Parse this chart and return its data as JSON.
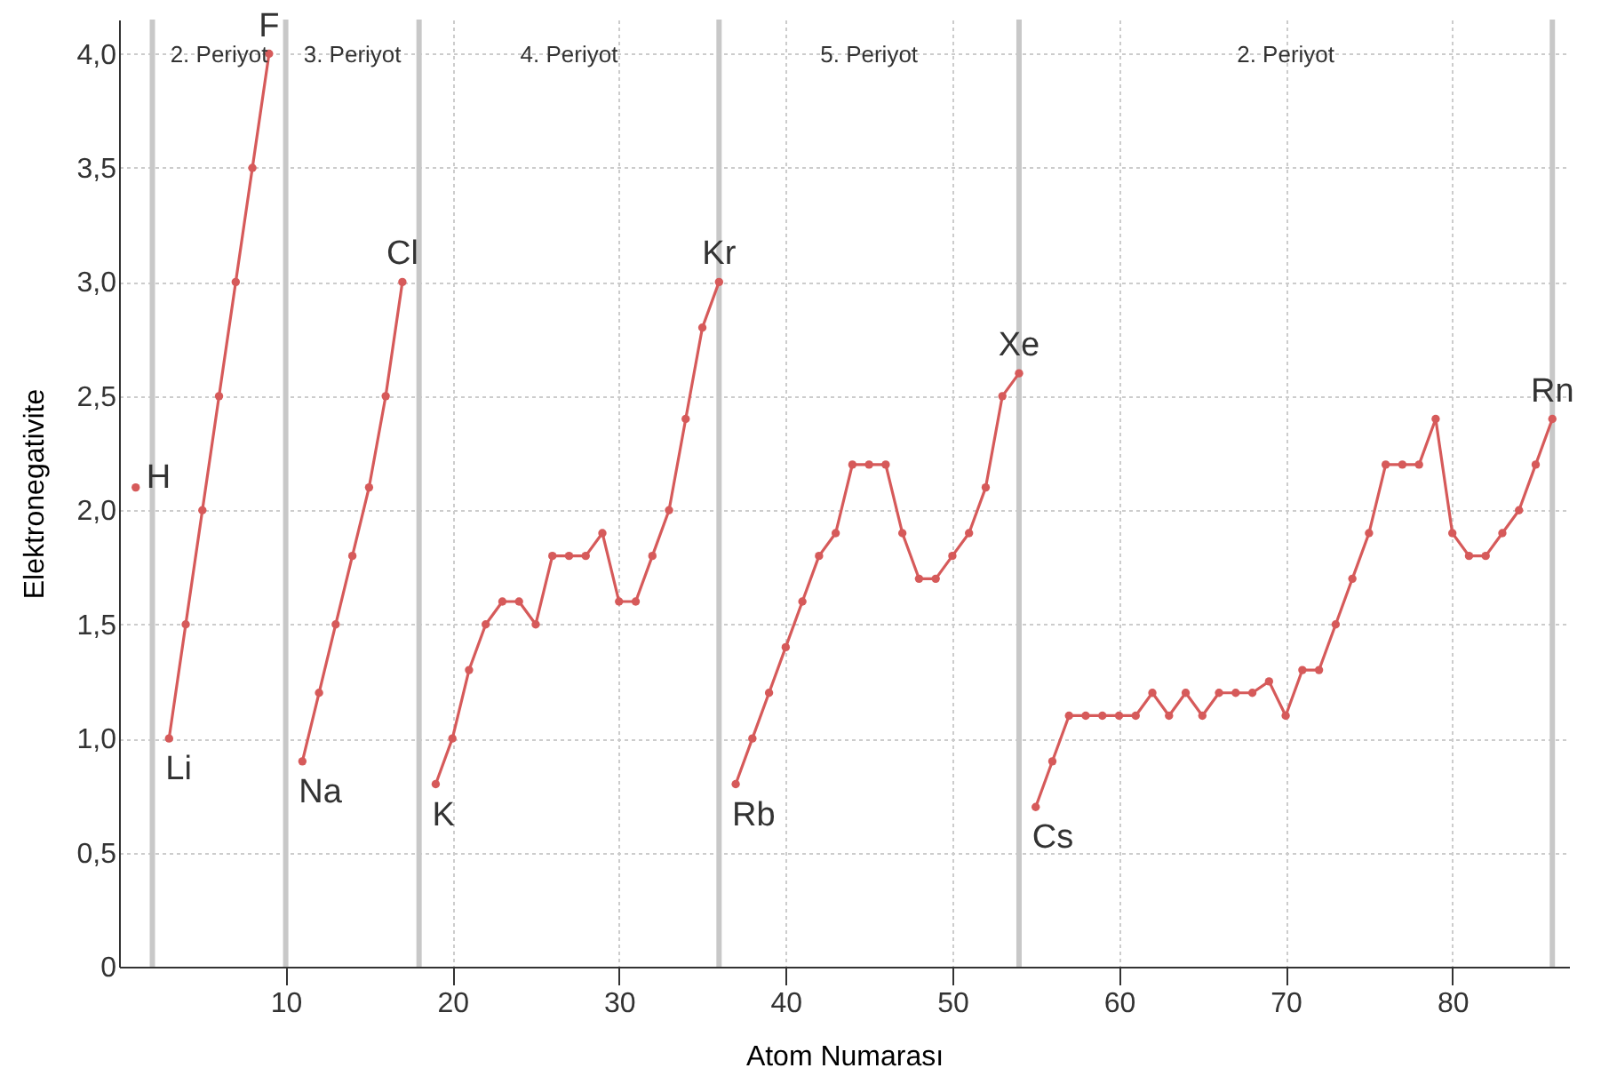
{
  "chart_data": {
    "type": "line",
    "xlabel": "Atom Numarası",
    "ylabel": "Elektronegativite",
    "xlim": [
      0,
      87
    ],
    "xticks": [
      10,
      20,
      30,
      40,
      50,
      60,
      70,
      80
    ],
    "ylim": [
      0,
      4.15
    ],
    "yticks": [
      {
        "value": 0,
        "label": "0"
      },
      {
        "value": 0.5,
        "label": "0,5"
      },
      {
        "value": 1,
        "label": "1,0"
      },
      {
        "value": 1.5,
        "label": "1,5"
      },
      {
        "value": 2,
        "label": "2,0"
      },
      {
        "value": 2.5,
        "label": "2,5"
      },
      {
        "value": 3,
        "label": "3,0"
      },
      {
        "value": 3.5,
        "label": "3,5"
      },
      {
        "value": 4,
        "label": "4,0"
      }
    ],
    "grid": true,
    "marker": "circle",
    "line_style": "solid",
    "series": [
      {
        "color": "#d65a5a",
        "x": [
          1
        ],
        "values": [
          2.1
        ]
      },
      {
        "color": "#d65a5a",
        "x": [
          3,
          4,
          5,
          6,
          7,
          8,
          9
        ],
        "values": [
          1.0,
          1.5,
          2.0,
          2.5,
          3.0,
          3.5,
          4.0
        ]
      },
      {
        "color": "#d65a5a",
        "x": [
          11,
          12,
          13,
          14,
          15,
          16,
          17
        ],
        "values": [
          0.9,
          1.2,
          1.5,
          1.8,
          2.1,
          2.5,
          3.0
        ]
      },
      {
        "color": "#d65a5a",
        "x": [
          19,
          20,
          21,
          22,
          23,
          24,
          25,
          26,
          27,
          28,
          29,
          30,
          31,
          32,
          33,
          34,
          35,
          36
        ],
        "values": [
          0.8,
          1.0,
          1.3,
          1.5,
          1.6,
          1.6,
          1.5,
          1.8,
          1.8,
          1.8,
          1.9,
          1.6,
          1.6,
          1.8,
          2.0,
          2.4,
          2.8,
          3.0
        ]
      },
      {
        "color": "#d65a5a",
        "x": [
          37,
          38,
          39,
          40,
          41,
          42,
          43,
          44,
          45,
          46,
          47,
          48,
          49,
          50,
          51,
          52,
          53,
          54
        ],
        "values": [
          0.8,
          1.0,
          1.2,
          1.4,
          1.6,
          1.8,
          1.9,
          2.2,
          2.2,
          2.2,
          1.9,
          1.7,
          1.7,
          1.8,
          1.9,
          2.1,
          2.5,
          2.6
        ]
      },
      {
        "color": "#d65a5a",
        "x": [
          55,
          56,
          57,
          58,
          59,
          60,
          61,
          62,
          63,
          64,
          65,
          66,
          67,
          68,
          69,
          70,
          71,
          72,
          73,
          74,
          75,
          76,
          77,
          78,
          79,
          80,
          81,
          82,
          83,
          84,
          85,
          86
        ],
        "values": [
          0.7,
          0.9,
          1.1,
          1.1,
          1.1,
          1.1,
          1.1,
          1.2,
          1.1,
          1.2,
          1.1,
          1.2,
          1.2,
          1.2,
          1.25,
          1.1,
          1.3,
          1.3,
          1.5,
          1.7,
          1.9,
          2.2,
          2.2,
          2.2,
          2.4,
          1.9,
          1.8,
          1.8,
          1.9,
          2.0,
          2.2,
          2.4
        ]
      }
    ],
    "ref_lines": [
      {
        "axis": "x",
        "value": 2,
        "color": "#c8c8c8"
      },
      {
        "axis": "x",
        "value": 10,
        "color": "#c8c8c8"
      },
      {
        "axis": "x",
        "value": 18,
        "color": "#c8c8c8"
      },
      {
        "axis": "x",
        "value": 36,
        "color": "#c8c8c8"
      },
      {
        "axis": "x",
        "value": 54,
        "color": "#c8c8c8"
      },
      {
        "axis": "x",
        "value": 86,
        "color": "#c8c8c8"
      }
    ],
    "annotations": [
      "2. Periyot",
      "3. Periyot",
      "4. Periyot",
      "5. Periyot",
      "2. Periyot",
      {
        "text": "H",
        "x": 1,
        "y": 2.1
      },
      {
        "text": "Li",
        "x": 3,
        "y": 1.0
      },
      {
        "text": "F",
        "x": 9,
        "y": 4.0
      },
      {
        "text": "Na",
        "x": 11,
        "y": 0.9
      },
      {
        "text": "Cl",
        "x": 17,
        "y": 3.0
      },
      {
        "text": "K",
        "x": 19,
        "y": 0.8
      },
      {
        "text": "Kr",
        "x": 36,
        "y": 3.0
      },
      {
        "text": "Rb",
        "x": 37,
        "y": 0.8
      },
      {
        "text": "Xe",
        "x": 54,
        "y": 2.6
      },
      {
        "text": "Cs",
        "x": 55,
        "y": 0.7
      },
      {
        "text": "Rn",
        "x": 86,
        "y": 2.4
      }
    ]
  }
}
